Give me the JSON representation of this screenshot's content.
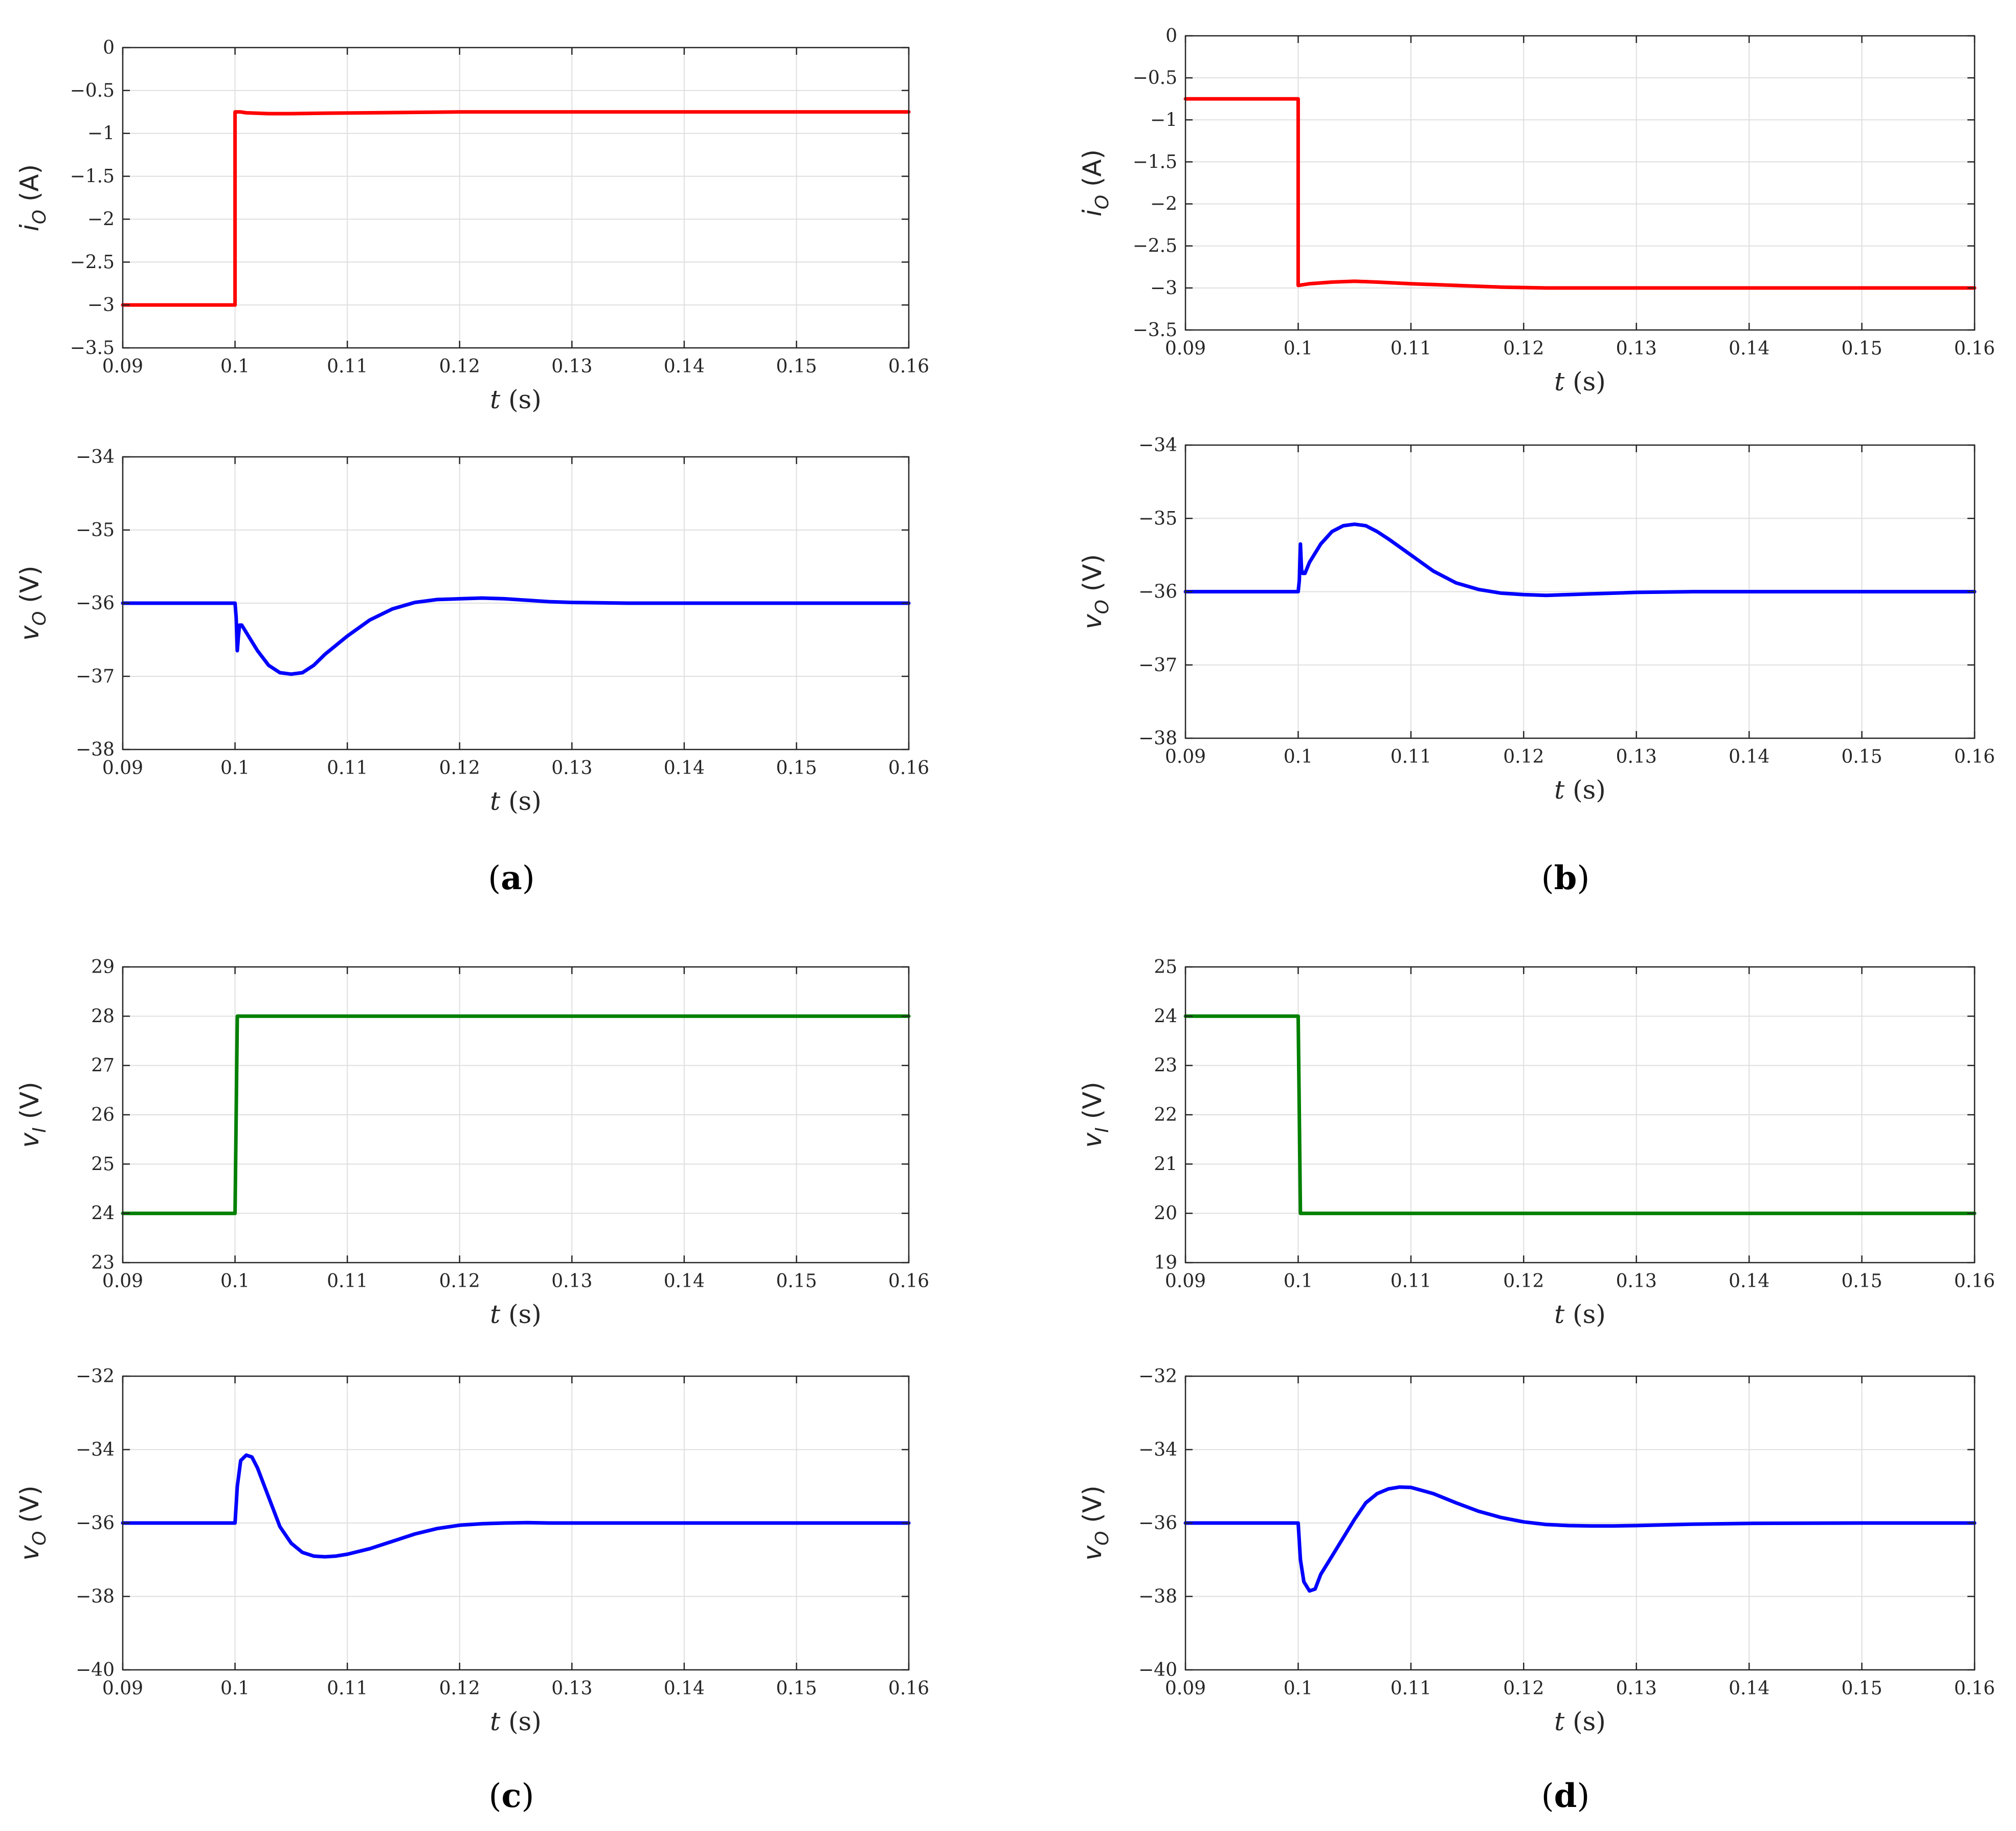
{
  "figure": {
    "panels": [
      {
        "id": "a",
        "label": "a"
      },
      {
        "id": "b",
        "label": "b"
      },
      {
        "id": "c",
        "label": "c"
      },
      {
        "id": "d",
        "label": "d"
      }
    ]
  },
  "chart_data": [
    {
      "panel": "a",
      "position": "top",
      "type": "line",
      "title": "",
      "xlabel_var": "t",
      "xlabel_unit": "(s)",
      "ylabel_var": "i",
      "ylabel_sub": "O",
      "ylabel_unit": "(A)",
      "xlim": [
        0.09,
        0.16
      ],
      "ylim": [
        -3.5,
        0
      ],
      "xticks": [
        0.09,
        0.1,
        0.11,
        0.12,
        0.13,
        0.14,
        0.15,
        0.16
      ],
      "xtick_labels": [
        "0.09",
        "0.1",
        "0.11",
        "0.12",
        "0.13",
        "0.14",
        "0.15",
        "0.16"
      ],
      "yticks": [
        0,
        -0.5,
        -1,
        -1.5,
        -2,
        -2.5,
        -3,
        -3.5
      ],
      "ytick_labels": [
        "0",
        "−0.5",
        "−1",
        "−1.5",
        "−2",
        "−2.5",
        "−3",
        "−3.5"
      ],
      "grid": true,
      "series": [
        {
          "color": "#ff0000",
          "x": [
            0.09,
            0.1,
            0.1,
            0.1005,
            0.101,
            0.103,
            0.105,
            0.108,
            0.112,
            0.116,
            0.12,
            0.125,
            0.13,
            0.14,
            0.15,
            0.16
          ],
          "y": [
            -3.0,
            -3.0,
            -0.75,
            -0.75,
            -0.76,
            -0.77,
            -0.77,
            -0.765,
            -0.76,
            -0.755,
            -0.75,
            -0.75,
            -0.75,
            -0.75,
            -0.75,
            -0.75
          ]
        }
      ]
    },
    {
      "panel": "a",
      "position": "bottom",
      "type": "line",
      "title": "",
      "xlabel_var": "t",
      "xlabel_unit": "(s)",
      "ylabel_var": "v",
      "ylabel_sub": "O",
      "ylabel_unit": "(V)",
      "xlim": [
        0.09,
        0.16
      ],
      "ylim": [
        -38,
        -34
      ],
      "xticks": [
        0.09,
        0.1,
        0.11,
        0.12,
        0.13,
        0.14,
        0.15,
        0.16
      ],
      "xtick_labels": [
        "0.09",
        "0.1",
        "0.11",
        "0.12",
        "0.13",
        "0.14",
        "0.15",
        "0.16"
      ],
      "yticks": [
        -34,
        -35,
        -36,
        -37,
        -38
      ],
      "ytick_labels": [
        "−34",
        "−35",
        "−36",
        "−37",
        "−38"
      ],
      "grid": true,
      "series": [
        {
          "color": "#0000ff",
          "x": [
            0.09,
            0.1,
            0.1001,
            0.1002,
            0.1003,
            0.1004,
            0.1006,
            0.101,
            0.102,
            0.103,
            0.104,
            0.105,
            0.106,
            0.107,
            0.108,
            0.11,
            0.112,
            0.114,
            0.116,
            0.118,
            0.12,
            0.122,
            0.124,
            0.126,
            0.128,
            0.13,
            0.135,
            0.14,
            0.15,
            0.16
          ],
          "y": [
            -36,
            -36,
            -36.2,
            -36.65,
            -36.45,
            -36.3,
            -36.3,
            -36.4,
            -36.65,
            -36.85,
            -36.95,
            -36.97,
            -36.95,
            -36.85,
            -36.7,
            -36.45,
            -36.23,
            -36.08,
            -35.99,
            -35.95,
            -35.94,
            -35.93,
            -35.94,
            -35.96,
            -35.98,
            -35.99,
            -36,
            -36,
            -36,
            -36
          ]
        }
      ]
    },
    {
      "panel": "b",
      "position": "top",
      "type": "line",
      "title": "",
      "xlabel_var": "t",
      "xlabel_unit": "(s)",
      "ylabel_var": "i",
      "ylabel_sub": "O",
      "ylabel_unit": "(A)",
      "xlim": [
        0.09,
        0.16
      ],
      "ylim": [
        -3.5,
        0
      ],
      "xticks": [
        0.09,
        0.1,
        0.11,
        0.12,
        0.13,
        0.14,
        0.15,
        0.16
      ],
      "xtick_labels": [
        "0.09",
        "0.1",
        "0.11",
        "0.12",
        "0.13",
        "0.14",
        "0.15",
        "0.16"
      ],
      "yticks": [
        0,
        -0.5,
        -1,
        -1.5,
        -2,
        -2.5,
        -3,
        -3.5
      ],
      "ytick_labels": [
        "0",
        "−0.5",
        "−1",
        "−1.5",
        "−2",
        "−2.5",
        "−3",
        "−3.5"
      ],
      "grid": true,
      "series": [
        {
          "color": "#ff0000",
          "x": [
            0.09,
            0.1,
            0.1,
            0.1005,
            0.101,
            0.103,
            0.105,
            0.107,
            0.11,
            0.114,
            0.118,
            0.122,
            0.126,
            0.13,
            0.14,
            0.15,
            0.16
          ],
          "y": [
            -0.75,
            -0.75,
            -2.97,
            -2.96,
            -2.95,
            -2.93,
            -2.92,
            -2.93,
            -2.95,
            -2.97,
            -2.99,
            -3.0,
            -3.0,
            -3.0,
            -3.0,
            -3.0,
            -3.0
          ]
        }
      ]
    },
    {
      "panel": "b",
      "position": "bottom",
      "type": "line",
      "title": "",
      "xlabel_var": "t",
      "xlabel_unit": "(s)",
      "ylabel_var": "v",
      "ylabel_sub": "O",
      "ylabel_unit": "(V)",
      "xlim": [
        0.09,
        0.16
      ],
      "ylim": [
        -38,
        -34
      ],
      "xticks": [
        0.09,
        0.1,
        0.11,
        0.12,
        0.13,
        0.14,
        0.15,
        0.16
      ],
      "xtick_labels": [
        "0.09",
        "0.1",
        "0.11",
        "0.12",
        "0.13",
        "0.14",
        "0.15",
        "0.16"
      ],
      "yticks": [
        -34,
        -35,
        -36,
        -37,
        -38
      ],
      "ytick_labels": [
        "−34",
        "−35",
        "−36",
        "−37",
        "−38"
      ],
      "grid": true,
      "series": [
        {
          "color": "#0000ff",
          "x": [
            0.09,
            0.1,
            0.1001,
            0.1002,
            0.1003,
            0.1004,
            0.1006,
            0.101,
            0.102,
            0.103,
            0.104,
            0.105,
            0.106,
            0.107,
            0.108,
            0.11,
            0.112,
            0.114,
            0.116,
            0.118,
            0.12,
            0.122,
            0.124,
            0.126,
            0.128,
            0.13,
            0.135,
            0.14,
            0.15,
            0.16
          ],
          "y": [
            -36,
            -36,
            -35.85,
            -35.35,
            -35.7,
            -35.75,
            -35.75,
            -35.6,
            -35.35,
            -35.18,
            -35.1,
            -35.08,
            -35.1,
            -35.18,
            -35.28,
            -35.5,
            -35.72,
            -35.88,
            -35.97,
            -36.02,
            -36.04,
            -36.05,
            -36.04,
            -36.03,
            -36.02,
            -36.01,
            -36,
            -36,
            -36,
            -36
          ]
        }
      ]
    },
    {
      "panel": "c",
      "position": "top",
      "type": "line",
      "title": "",
      "xlabel_var": "t",
      "xlabel_unit": "(s)",
      "ylabel_var": "v",
      "ylabel_sub": "I",
      "ylabel_unit": "(V)",
      "xlim": [
        0.09,
        0.16
      ],
      "ylim": [
        23,
        29
      ],
      "xticks": [
        0.09,
        0.1,
        0.11,
        0.12,
        0.13,
        0.14,
        0.15,
        0.16
      ],
      "xtick_labels": [
        "0.09",
        "0.1",
        "0.11",
        "0.12",
        "0.13",
        "0.14",
        "0.15",
        "0.16"
      ],
      "yticks": [
        29,
        28,
        27,
        26,
        25,
        24,
        23
      ],
      "ytick_labels": [
        "29",
        "28",
        "27",
        "26",
        "25",
        "24",
        "23"
      ],
      "grid": true,
      "series": [
        {
          "color": "#008000",
          "x": [
            0.09,
            0.1,
            0.1002,
            0.16
          ],
          "y": [
            24,
            24,
            28,
            28
          ]
        }
      ]
    },
    {
      "panel": "c",
      "position": "bottom",
      "type": "line",
      "title": "",
      "xlabel_var": "t",
      "xlabel_unit": "(s)",
      "ylabel_var": "v",
      "ylabel_sub": "O",
      "ylabel_unit": "(V)",
      "xlim": [
        0.09,
        0.16
      ],
      "ylim": [
        -40,
        -32
      ],
      "xticks": [
        0.09,
        0.1,
        0.11,
        0.12,
        0.13,
        0.14,
        0.15,
        0.16
      ],
      "xtick_labels": [
        "0.09",
        "0.1",
        "0.11",
        "0.12",
        "0.13",
        "0.14",
        "0.15",
        "0.16"
      ],
      "yticks": [
        -32,
        -34,
        -36,
        -38,
        -40
      ],
      "ytick_labels": [
        "−32",
        "−34",
        "−36",
        "−38",
        "−40"
      ],
      "grid": true,
      "series": [
        {
          "color": "#0000ff",
          "x": [
            0.09,
            0.1,
            0.1002,
            0.1005,
            0.101,
            0.1015,
            0.102,
            0.103,
            0.104,
            0.105,
            0.106,
            0.107,
            0.108,
            0.109,
            0.11,
            0.112,
            0.114,
            0.116,
            0.118,
            0.12,
            0.122,
            0.124,
            0.126,
            0.128,
            0.13,
            0.135,
            0.14,
            0.15,
            0.16
          ],
          "y": [
            -36,
            -36,
            -35.0,
            -34.3,
            -34.15,
            -34.2,
            -34.5,
            -35.3,
            -36.1,
            -36.55,
            -36.8,
            -36.9,
            -36.92,
            -36.9,
            -36.85,
            -36.7,
            -36.5,
            -36.3,
            -36.15,
            -36.06,
            -36.02,
            -36.0,
            -35.99,
            -36.0,
            -36.0,
            -36.0,
            -36.0,
            -36.0,
            -36.0
          ]
        }
      ]
    },
    {
      "panel": "d",
      "position": "top",
      "type": "line",
      "title": "",
      "xlabel_var": "t",
      "xlabel_unit": "(s)",
      "ylabel_var": "v",
      "ylabel_sub": "I",
      "ylabel_unit": "(V)",
      "xlim": [
        0.09,
        0.16
      ],
      "ylim": [
        19,
        25
      ],
      "xticks": [
        0.09,
        0.1,
        0.11,
        0.12,
        0.13,
        0.14,
        0.15,
        0.16
      ],
      "xtick_labels": [
        "0.09",
        "0.1",
        "0.11",
        "0.12",
        "0.13",
        "0.14",
        "0.15",
        "0.16"
      ],
      "yticks": [
        25,
        24,
        23,
        22,
        21,
        20,
        19
      ],
      "ytick_labels": [
        "25",
        "24",
        "23",
        "22",
        "21",
        "20",
        "19"
      ],
      "grid": true,
      "series": [
        {
          "color": "#008000",
          "x": [
            0.09,
            0.1,
            0.1002,
            0.16
          ],
          "y": [
            24,
            24,
            20,
            20
          ]
        }
      ]
    },
    {
      "panel": "d",
      "position": "bottom",
      "type": "line",
      "title": "",
      "xlabel_var": "t",
      "xlabel_unit": "(s)",
      "ylabel_var": "v",
      "ylabel_sub": "O",
      "ylabel_unit": "(V)",
      "xlim": [
        0.09,
        0.16
      ],
      "ylim": [
        -40,
        -32
      ],
      "xticks": [
        0.09,
        0.1,
        0.11,
        0.12,
        0.13,
        0.14,
        0.15,
        0.16
      ],
      "xtick_labels": [
        "0.09",
        "0.1",
        "0.11",
        "0.12",
        "0.13",
        "0.14",
        "0.15",
        "0.16"
      ],
      "yticks": [
        -32,
        -34,
        -36,
        -38,
        -40
      ],
      "ytick_labels": [
        "−32",
        "−34",
        "−36",
        "−38",
        "−40"
      ],
      "grid": true,
      "series": [
        {
          "color": "#0000ff",
          "x": [
            0.09,
            0.1,
            0.1002,
            0.1005,
            0.101,
            0.1015,
            0.102,
            0.103,
            0.104,
            0.105,
            0.106,
            0.107,
            0.108,
            0.109,
            0.11,
            0.112,
            0.114,
            0.116,
            0.118,
            0.12,
            0.122,
            0.124,
            0.126,
            0.128,
            0.13,
            0.135,
            0.14,
            0.15,
            0.16
          ],
          "y": [
            -36,
            -36,
            -37.0,
            -37.6,
            -37.85,
            -37.8,
            -37.4,
            -36.9,
            -36.4,
            -35.9,
            -35.45,
            -35.2,
            -35.07,
            -35.02,
            -35.03,
            -35.2,
            -35.45,
            -35.68,
            -35.85,
            -35.97,
            -36.04,
            -36.07,
            -36.08,
            -36.08,
            -36.07,
            -36.03,
            -36.01,
            -36.0,
            -36.0
          ]
        }
      ]
    }
  ]
}
